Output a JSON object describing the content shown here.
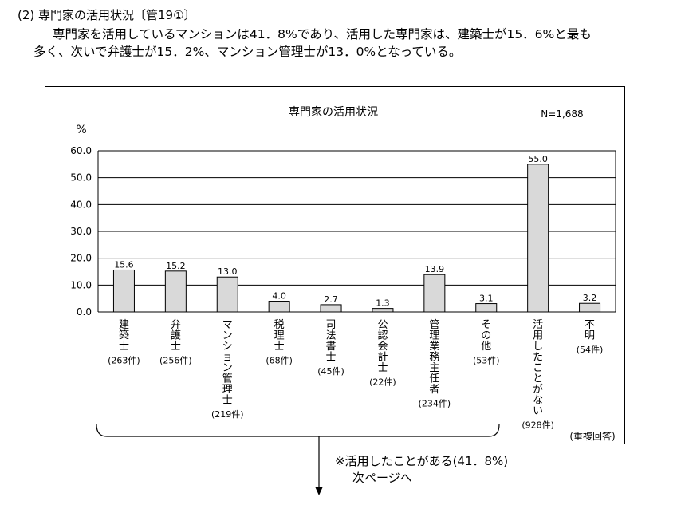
{
  "heading": "(2) 専門家の活用状況〔管19①〕",
  "intro": {
    "line1": "専門家を活用しているマンションは41．8%であり、活用した専門家は、建築士が15．6%と最も",
    "line2": "多く、次いで弁護士が15．2%、マンション管理士が13．0%となっている。"
  },
  "chart_data": {
    "type": "bar",
    "title": "専門家の活用状況",
    "ylabel": "%",
    "n_label": "N=1,688",
    "ylim": [
      0,
      60
    ],
    "yticks": [
      "0.0",
      "10.0",
      "20.0",
      "30.0",
      "40.0",
      "50.0",
      "60.0"
    ],
    "grid": true,
    "categories": [
      "建築士",
      "弁護士",
      "マンション管理士",
      "税理士",
      "司法書士",
      "公認会計士",
      "管理業務主任者",
      "その他",
      "活用したことがない",
      "不明"
    ],
    "counts": [
      "(263件)",
      "(256件)",
      "(219件)",
      "(68件)",
      "(45件)",
      "(22件)",
      "(234件)",
      "(53件)",
      "(928件)",
      "(54件)"
    ],
    "values": [
      15.6,
      15.2,
      13.0,
      4.0,
      2.7,
      1.3,
      13.9,
      3.1,
      55.0,
      3.2
    ],
    "value_labels": [
      "15.6",
      "15.2",
      "13.0",
      "4.0",
      "2.7",
      "1.3",
      "13.9",
      "3.1",
      "55.0",
      "3.2"
    ],
    "note": "(重複回答)",
    "bar_color": "#d9d9d9"
  },
  "footnote": {
    "line1": "※活用したことがある(41．8%)",
    "line2": "次ページへ"
  }
}
